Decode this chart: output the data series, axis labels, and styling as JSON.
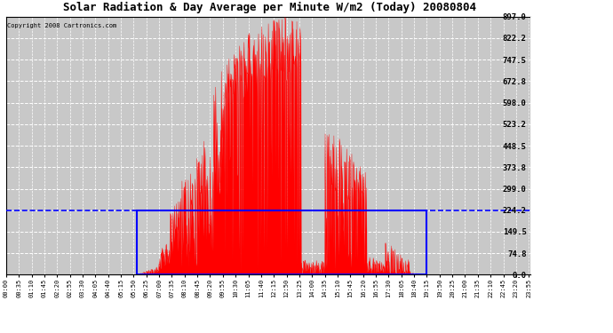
{
  "title": "Solar Radiation & Day Average per Minute W/m2 (Today) 20080804",
  "copyright": "Copyright 2008 Cartronics.com",
  "bg_color": "#ffffff",
  "plot_bg_color": "#c8c8c8",
  "grid_color": "#ffffff",
  "y_max": 897.0,
  "y_min": 0.0,
  "y_ticks": [
    0.0,
    74.8,
    149.5,
    224.2,
    299.0,
    373.8,
    448.5,
    523.2,
    598.0,
    672.8,
    747.5,
    822.2,
    897.0
  ],
  "fill_color": "#ff0000",
  "avg_line_color": "#0000ff",
  "box_color": "#0000ff",
  "n_minutes": 1440,
  "rise_idx": 360,
  "set_idx": 1155,
  "avg_value": 224.2,
  "peak_val": 897.0,
  "figw": 6.9,
  "figh": 3.75
}
